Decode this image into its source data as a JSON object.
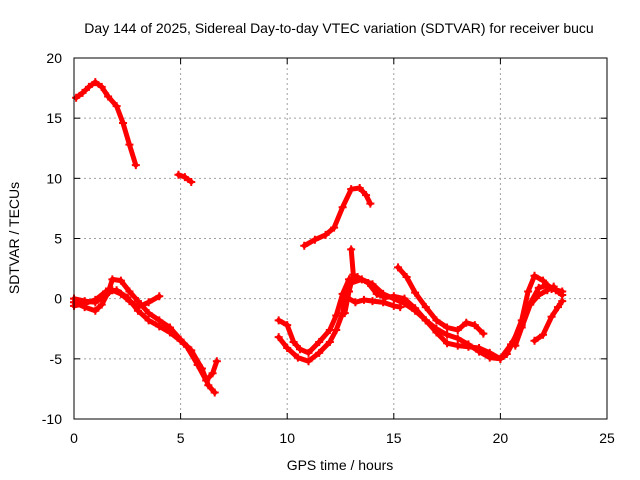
{
  "chart_data": {
    "type": "line",
    "title": "Day 144 of 2025, Sidereal Day-to-day VTEC variation (SDTVAR) for receiver bucu",
    "xlabel": "GPS time / hours",
    "ylabel": "SDTVAR / TECUs",
    "xlim": [
      0,
      25
    ],
    "ylim": [
      -10,
      20
    ],
    "xticks": [
      0,
      5,
      10,
      15,
      20,
      25
    ],
    "yticks": [
      -10,
      -5,
      0,
      5,
      10,
      15,
      20
    ],
    "xtick_labels": [
      "0",
      "5",
      "10",
      "15",
      "20",
      "25"
    ],
    "ytick_labels": [
      "-10",
      "-5",
      "0",
      "5",
      "10",
      "15",
      "20"
    ],
    "grid": true,
    "color": "#ff0000",
    "series": [
      {
        "name": "s1",
        "points": [
          [
            0.1,
            16.7
          ],
          [
            0.4,
            17.1
          ],
          [
            0.7,
            17.6
          ],
          [
            1.0,
            18.0
          ],
          [
            1.3,
            17.6
          ],
          [
            1.6,
            16.8
          ],
          [
            2.0,
            16.0
          ],
          [
            2.3,
            14.6
          ],
          [
            2.6,
            12.8
          ],
          [
            2.9,
            11.1
          ]
        ]
      },
      {
        "name": "s2",
        "points": [
          [
            4.9,
            10.3
          ],
          [
            5.2,
            10.1
          ],
          [
            5.5,
            9.7
          ]
        ]
      },
      {
        "name": "s3",
        "points": [
          [
            10.8,
            4.4
          ],
          [
            11.3,
            4.9
          ],
          [
            11.8,
            5.3
          ],
          [
            12.2,
            5.9
          ],
          [
            12.6,
            7.6
          ],
          [
            13.0,
            9.1
          ],
          [
            13.4,
            9.2
          ],
          [
            13.7,
            8.6
          ],
          [
            13.9,
            7.9
          ]
        ]
      },
      {
        "name": "s4",
        "points": [
          [
            0.0,
            -0.3
          ],
          [
            0.5,
            -0.7
          ],
          [
            1.0,
            -1.0
          ],
          [
            1.3,
            -0.5
          ],
          [
            1.6,
            0.5
          ],
          [
            1.8,
            1.6
          ],
          [
            2.2,
            1.5
          ],
          [
            2.6,
            0.6
          ],
          [
            3.0,
            -0.2
          ],
          [
            3.5,
            -1.2
          ],
          [
            4.0,
            -1.8
          ],
          [
            4.5,
            -2.4
          ],
          [
            5.0,
            -3.4
          ],
          [
            5.5,
            -4.3
          ],
          [
            6.0,
            -5.8
          ],
          [
            6.3,
            -7.2
          ],
          [
            6.6,
            -7.8
          ]
        ]
      },
      {
        "name": "s5",
        "points": [
          [
            0.0,
            0.0
          ],
          [
            0.5,
            -0.2
          ],
          [
            1.0,
            -0.3
          ],
          [
            1.5,
            0.3
          ],
          [
            1.8,
            0.7
          ],
          [
            2.2,
            0.4
          ],
          [
            2.6,
            -0.2
          ],
          [
            3.0,
            -0.7
          ],
          [
            3.5,
            -0.3
          ],
          [
            4.0,
            0.2
          ]
        ]
      },
      {
        "name": "s6",
        "points": [
          [
            0.0,
            -0.6
          ],
          [
            0.5,
            -0.4
          ],
          [
            1.0,
            -0.1
          ],
          [
            1.5,
            0.6
          ],
          [
            2.0,
            0.7
          ],
          [
            2.5,
            0.1
          ],
          [
            3.0,
            -1.0
          ],
          [
            3.5,
            -1.8
          ],
          [
            4.0,
            -2.3
          ],
          [
            4.5,
            -2.8
          ],
          [
            5.0,
            -3.5
          ],
          [
            5.3,
            -4.0
          ],
          [
            5.8,
            -5.5
          ],
          [
            6.2,
            -6.8
          ],
          [
            6.5,
            -6.2
          ],
          [
            6.7,
            -5.2
          ]
        ]
      },
      {
        "name": "s7",
        "points": [
          [
            9.6,
            -3.2
          ],
          [
            10.0,
            -4.1
          ],
          [
            10.5,
            -4.9
          ],
          [
            11.0,
            -5.2
          ],
          [
            11.5,
            -4.5
          ],
          [
            12.0,
            -3.6
          ],
          [
            12.3,
            -2.6
          ],
          [
            12.6,
            -1.2
          ],
          [
            12.8,
            0.8
          ],
          [
            13.0,
            1.3
          ],
          [
            13.5,
            1.6
          ],
          [
            14.0,
            1.2
          ],
          [
            14.5,
            0.4
          ],
          [
            15.0,
            0.0
          ],
          [
            15.5,
            -0.4
          ],
          [
            16.0,
            -1.0
          ],
          [
            16.5,
            -1.8
          ],
          [
            17.0,
            -2.5
          ],
          [
            17.5,
            -3.0
          ],
          [
            18.0,
            -3.3
          ],
          [
            18.5,
            -3.8
          ],
          [
            19.0,
            -4.4
          ],
          [
            19.5,
            -4.9
          ],
          [
            20.0,
            -5.0
          ],
          [
            20.3,
            -4.6
          ],
          [
            20.6,
            -3.6
          ],
          [
            21.0,
            -1.8
          ],
          [
            21.3,
            0.6
          ],
          [
            21.6,
            1.9
          ],
          [
            22.0,
            1.5
          ],
          [
            22.4,
            0.8
          ],
          [
            22.9,
            0.6
          ]
        ]
      },
      {
        "name": "s8",
        "points": [
          [
            9.6,
            -1.8
          ],
          [
            10.0,
            -2.2
          ],
          [
            10.3,
            -3.6
          ],
          [
            10.6,
            -4.2
          ],
          [
            11.0,
            -4.5
          ],
          [
            11.5,
            -3.6
          ],
          [
            12.0,
            -2.6
          ],
          [
            12.3,
            -1.4
          ],
          [
            12.6,
            0.4
          ],
          [
            12.9,
            1.6
          ],
          [
            13.3,
            1.8
          ],
          [
            13.8,
            1.3
          ],
          [
            14.2,
            0.4
          ],
          [
            14.6,
            0.1
          ],
          [
            15.0,
            0.2
          ],
          [
            15.5,
            0.0
          ],
          [
            16.0,
            -0.8
          ],
          [
            16.5,
            -1.8
          ],
          [
            17.0,
            -2.8
          ],
          [
            17.5,
            -3.7
          ],
          [
            18.0,
            -3.9
          ],
          [
            18.5,
            -4.0
          ],
          [
            19.0,
            -4.1
          ],
          [
            19.5,
            -4.5
          ],
          [
            20.0,
            -5.0
          ],
          [
            20.5,
            -3.8
          ],
          [
            21.0,
            -2.2
          ],
          [
            21.4,
            -0.4
          ],
          [
            21.8,
            0.9
          ],
          [
            22.2,
            1.1
          ],
          [
            22.6,
            0.7
          ],
          [
            22.9,
            0.3
          ]
        ]
      },
      {
        "name": "s9",
        "points": [
          [
            12.7,
            -1.2
          ],
          [
            12.9,
            0.6
          ],
          [
            13.1,
            2.0
          ],
          [
            13.0,
            4.1
          ]
        ]
      },
      {
        "name": "s10",
        "points": [
          [
            12.8,
            0.1
          ],
          [
            13.2,
            -0.3
          ],
          [
            13.6,
            -0.1
          ],
          [
            14.0,
            -0.2
          ],
          [
            14.5,
            -0.3
          ],
          [
            15.0,
            -0.6
          ],
          [
            15.3,
            -0.7
          ]
        ]
      },
      {
        "name": "s11",
        "points": [
          [
            15.2,
            2.6
          ],
          [
            15.6,
            1.8
          ],
          [
            16.0,
            0.5
          ],
          [
            16.5,
            -0.7
          ],
          [
            17.0,
            -1.8
          ],
          [
            17.5,
            -2.4
          ],
          [
            18.0,
            -2.6
          ],
          [
            18.4,
            -2.0
          ],
          [
            18.8,
            -2.2
          ],
          [
            19.2,
            -2.9
          ]
        ]
      },
      {
        "name": "s12",
        "points": [
          [
            20.7,
            -3.9
          ],
          [
            21.0,
            -2.4
          ],
          [
            21.4,
            -0.5
          ],
          [
            21.8,
            0.3
          ],
          [
            22.2,
            0.7
          ],
          [
            22.5,
            1.0
          ]
        ]
      },
      {
        "name": "s13",
        "points": [
          [
            21.6,
            -3.5
          ],
          [
            22.0,
            -3.0
          ],
          [
            22.4,
            -1.5
          ],
          [
            22.7,
            -0.7
          ],
          [
            22.9,
            -0.2
          ]
        ]
      }
    ]
  }
}
